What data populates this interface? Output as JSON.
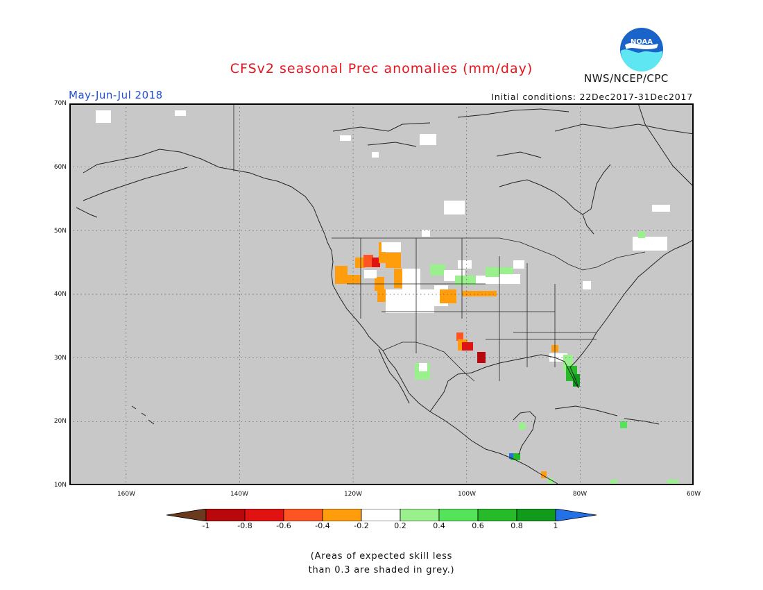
{
  "header": {
    "title": "CFSv2 seasonal Prec anomalies (mm/day)",
    "season": "May-Jun-Jul 2018",
    "initial_conditions": "Initial conditions: 22Dec2017-31Dec2017",
    "agency": "NWS/NCEP/CPC",
    "logo_text": "NOAA"
  },
  "map": {
    "lat_labels": [
      "70N",
      "60N",
      "50N",
      "40N",
      "30N",
      "20N",
      "10N"
    ],
    "lon_labels": [
      "160W",
      "140W",
      "120W",
      "100W",
      "80W",
      "60W"
    ],
    "background_color": "#c8c8c8",
    "lon_range": [
      -170,
      -60
    ],
    "lat_range": [
      10,
      70
    ]
  },
  "colorbar": {
    "labels": [
      "-1",
      "-0.8",
      "-0.6",
      "-0.4",
      "-0.2",
      "0.2",
      "0.4",
      "0.6",
      "0.8",
      "1"
    ],
    "colors": [
      "#6b3a1e",
      "#b8080c",
      "#e11212",
      "#ff5522",
      "#ff9d0c",
      "#ffffff",
      "#99f08c",
      "#55e35a",
      "#27bb2a",
      "#119a1b",
      "#2271e6"
    ]
  },
  "footnote": {
    "line1": "(Areas of expected skill less",
    "line2": "than 0.3 are shaded in grey.)"
  }
}
